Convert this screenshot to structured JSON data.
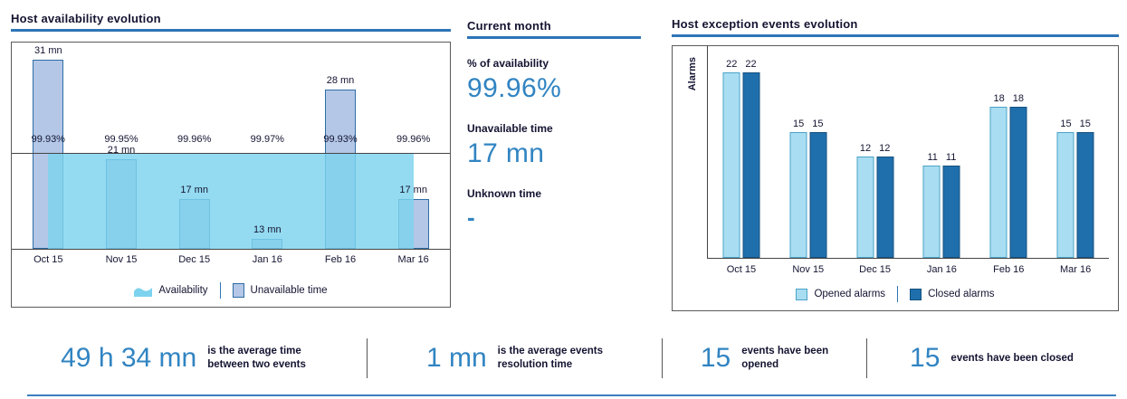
{
  "colors": {
    "accent": "#2e75b6",
    "value_blue": "#3184c2",
    "availability_area": "#7dd3ee",
    "unavailable_bar_fill": "#b4c7e7",
    "unavailable_bar_border": "#2e6da4",
    "opened_bar": "#a9def2",
    "closed_bar": "#1f6fad",
    "text_dark": "#141432"
  },
  "chart_data": [
    {
      "type": "bar",
      "title": "Host availability evolution",
      "categories": [
        "Oct 15",
        "Nov 15",
        "Dec 15",
        "Jan 16",
        "Feb 16",
        "Mar 16"
      ],
      "series": [
        {
          "name": "Unavailable time",
          "unit": "mn",
          "values": [
            31,
            21,
            17,
            13,
            28,
            17
          ]
        },
        {
          "name": "Availability",
          "unit": "%",
          "values": [
            99.93,
            99.95,
            99.96,
            99.97,
            99.93,
            99.96
          ]
        }
      ],
      "bar_labels": [
        "31 mn",
        "21 mn",
        "17 mn",
        "13 mn",
        "28 mn",
        "17 mn"
      ],
      "pct_labels": [
        "99.93%",
        "99.95%",
        "99.96%",
        "99.97%",
        "99.93%",
        "99.96%"
      ],
      "legend": [
        "Availability",
        "Unavailable time"
      ],
      "legend_position": "bottom"
    },
    {
      "type": "bar",
      "title": "Host exception events evolution",
      "ylabel": "Alarms",
      "categories": [
        "Oct 15",
        "Nov 15",
        "Dec 15",
        "Jan 16",
        "Feb 16",
        "Mar 16"
      ],
      "series": [
        {
          "name": "Opened alarms",
          "values": [
            22,
            15,
            12,
            11,
            18,
            15
          ]
        },
        {
          "name": "Closed alarms",
          "values": [
            22,
            15,
            12,
            11,
            18,
            15
          ]
        }
      ],
      "legend": [
        "Opened alarms",
        "Closed alarms"
      ],
      "legend_position": "bottom",
      "ylim": [
        0,
        24
      ]
    }
  ],
  "current_month": {
    "title": "Current month",
    "stats": [
      {
        "label": "% of availability",
        "value": "99.96%"
      },
      {
        "label": "Unavailable time",
        "value": "17 mn"
      },
      {
        "label": "Unknown time",
        "value": "-"
      }
    ]
  },
  "footer": {
    "stats": [
      {
        "value": "49 h 34 mn",
        "label_lines": [
          "is the average time",
          "between two events"
        ]
      },
      {
        "value": "1 mn",
        "label_lines": [
          "is the average events",
          "resolution time"
        ]
      },
      {
        "value": "15",
        "label_lines": [
          "events have been",
          "opened"
        ]
      },
      {
        "value": "15",
        "label_lines": [
          "events have been closed"
        ]
      }
    ]
  }
}
